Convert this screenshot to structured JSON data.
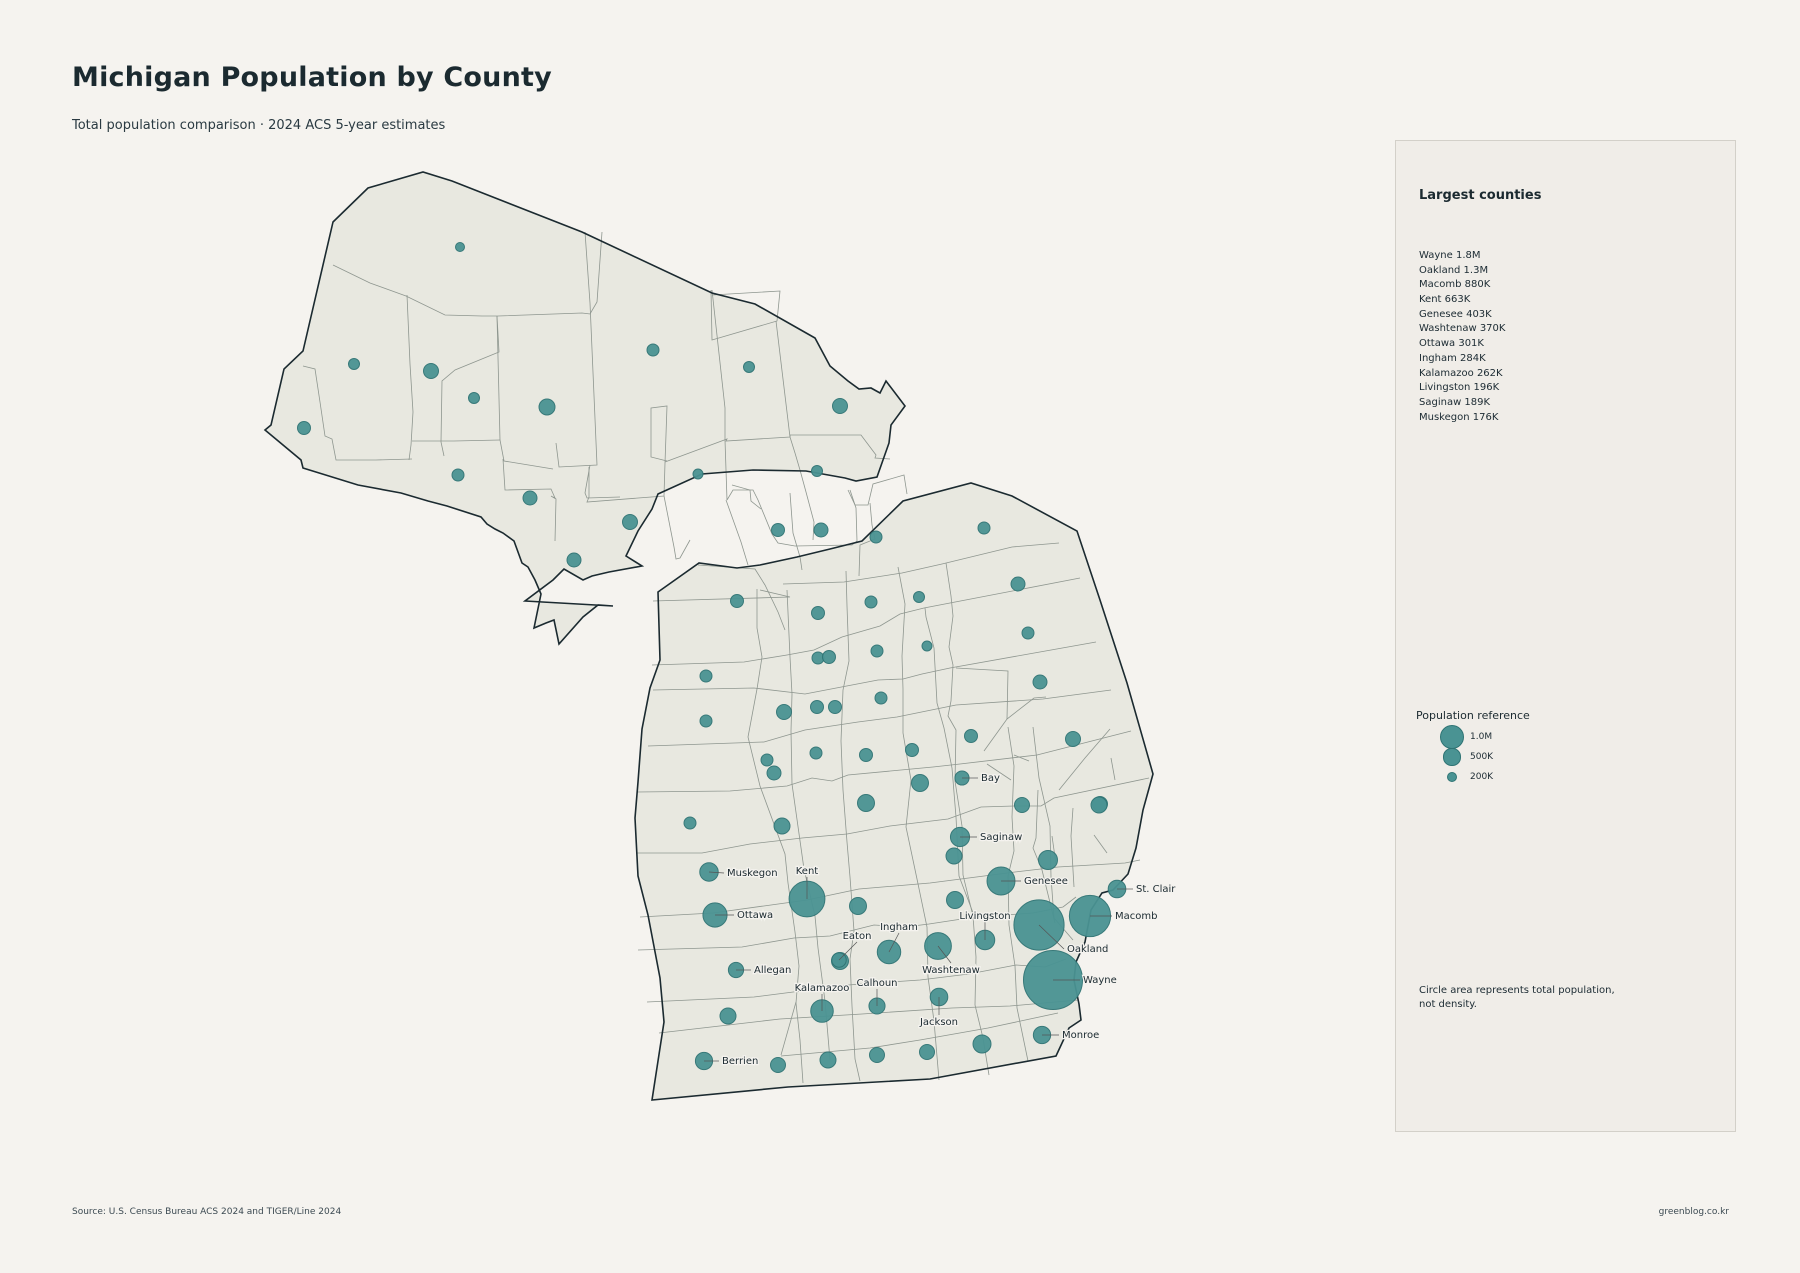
{
  "title": "Michigan Population by County",
  "subtitle": "Total population comparison · 2024 ACS 5-year estimates",
  "colors": {
    "bubble": "#4a9393",
    "land": "#e8e8e0",
    "background": "#f5f3ef"
  },
  "panel": {
    "title": "Largest counties",
    "top_counties": [
      "Wayne  1.8M",
      "Oakland  1.3M",
      "Macomb  880K",
      "Kent  663K",
      "Genesee  403K",
      "Washtenaw  370K",
      "Ottawa  301K",
      "Ingham  284K",
      "Kalamazoo  262K",
      "Livingston  196K",
      "Saginaw  189K",
      "Muskegon  176K"
    ],
    "reference_title": "Population reference",
    "reference": [
      {
        "label": "1.0M",
        "value": 1000000
      },
      {
        "label": "500K",
        "value": 500000
      },
      {
        "label": "200K",
        "value": 200000
      }
    ],
    "note": "Circle area represents total population, not density."
  },
  "map": {
    "labeled_counties": [
      {
        "name": "Wayne",
        "population": 1800000
      },
      {
        "name": "Oakland",
        "population": 1300000
      },
      {
        "name": "Macomb",
        "population": 880000
      },
      {
        "name": "Kent",
        "population": 663000
      },
      {
        "name": "Genesee",
        "population": 403000
      },
      {
        "name": "Washtenaw",
        "population": 370000
      },
      {
        "name": "Ottawa",
        "population": 301000
      },
      {
        "name": "Ingham",
        "population": 284000
      },
      {
        "name": "Kalamazoo",
        "population": 262000
      },
      {
        "name": "Livingston",
        "population": 196000
      },
      {
        "name": "Saginaw",
        "population": 189000
      },
      {
        "name": "Muskegon",
        "population": 176000
      },
      {
        "name": "St. Clair",
        "population": 160000
      },
      {
        "name": "Jackson",
        "population": 160000
      },
      {
        "name": "Berrien",
        "population": 153000
      },
      {
        "name": "Monroe",
        "population": 155000
      },
      {
        "name": "Calhoun",
        "population": 134000
      },
      {
        "name": "Allegan",
        "population": 120000
      },
      {
        "name": "Eaton",
        "population": 109000
      },
      {
        "name": "Bay",
        "population": 103000
      }
    ]
  },
  "footer": {
    "source": "Source: U.S. Census Bureau ACS 2024 and TIGER/Line 2024",
    "site": "greenblog.co.kr"
  }
}
